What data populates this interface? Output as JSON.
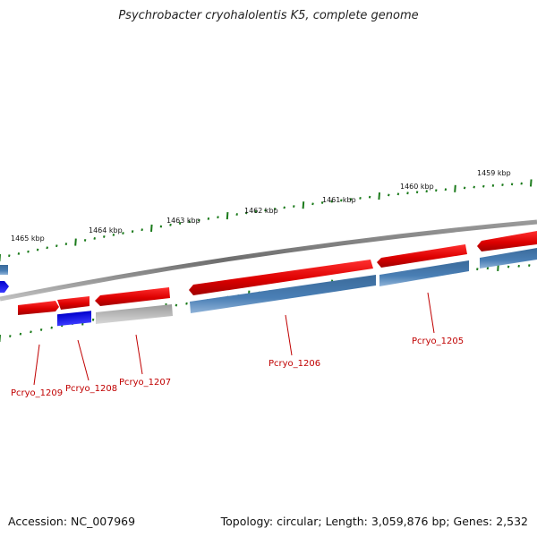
{
  "title": "Psychrobacter cryohalolentis K5, complete genome",
  "accession": "Accession: NC_007969",
  "topology": "Topology: circular; Length: 3,059,876 bp; Genes: 2,532",
  "colors": {
    "backbone": "#7a7a7a",
    "forward_gene": "#e00000",
    "reverse_gene": "#4a7fb5",
    "rna_gene": "#0000ee",
    "pseudo_gene": "#b4b4b4",
    "tick": "#1a7a1a",
    "label": "#c00000"
  },
  "kbp_markers": [
    "1465 kbp",
    "1464 kbp",
    "1463 kbp",
    "1462 kbp",
    "1461 kbp",
    "1460 kbp",
    "1459 kbp"
  ],
  "gene_labels": [
    "Pcryo_1209",
    "Pcryo_1208",
    "Pcryo_1207",
    "Pcryo_1206",
    "Pcryo_1205"
  ]
}
